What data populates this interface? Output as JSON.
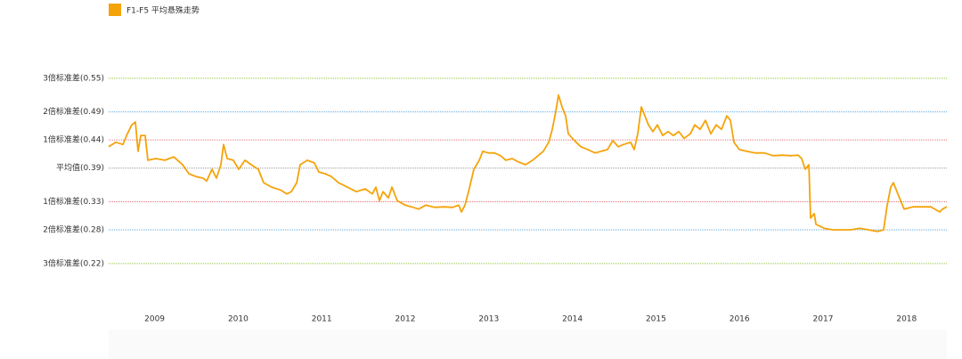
{
  "chart_data": {
    "type": "line",
    "x": [
      2008.45,
      2008.535,
      2008.621,
      2008.674,
      2008.727,
      2008.77,
      2008.802,
      2008.834,
      2008.887,
      2008.919,
      2009.015,
      2009.122,
      2009.228,
      2009.335,
      2009.41,
      2009.495,
      2009.58,
      2009.623,
      2009.687,
      2009.74,
      2009.793,
      2009.825,
      2009.868,
      2009.943,
      2010.007,
      2010.081,
      2010.156,
      2010.241,
      2010.305,
      2010.401,
      2010.508,
      2010.582,
      2010.636,
      2010.7,
      2010.742,
      2010.827,
      2010.913,
      2010.966,
      2011.041,
      2011.115,
      2011.201,
      2011.307,
      2011.414,
      2011.52,
      2011.606,
      2011.648,
      2011.691,
      2011.734,
      2011.798,
      2011.84,
      2011.904,
      2012.0,
      2012.075,
      2012.16,
      2012.245,
      2012.352,
      2012.459,
      2012.565,
      2012.64,
      2012.672,
      2012.714,
      2012.757,
      2012.821,
      2012.885,
      2012.928,
      2012.992,
      2013.066,
      2013.141,
      2013.205,
      2013.279,
      2013.354,
      2013.439,
      2013.525,
      2013.589,
      2013.653,
      2013.717,
      2013.759,
      2013.802,
      2013.834,
      2013.876,
      2013.919,
      2013.951,
      2014.026,
      2014.1,
      2014.186,
      2014.271,
      2014.346,
      2014.42,
      2014.484,
      2014.548,
      2014.612,
      2014.697,
      2014.74,
      2014.783,
      2014.825,
      2014.868,
      2014.911,
      2014.964,
      2015.017,
      2015.081,
      2015.145,
      2015.209,
      2015.273,
      2015.337,
      2015.412,
      2015.465,
      2015.529,
      2015.593,
      2015.657,
      2015.721,
      2015.785,
      2015.849,
      2015.891,
      2015.934,
      2015.998,
      2016.083,
      2016.19,
      2016.297,
      2016.403,
      2016.51,
      2016.616,
      2016.702,
      2016.744,
      2016.787,
      2016.83,
      2016.851,
      2016.894,
      2016.915,
      2017.011,
      2017.117,
      2017.224,
      2017.331,
      2017.437,
      2017.544,
      2017.65,
      2017.725,
      2017.768,
      2017.81,
      2017.842,
      2017.896,
      2017.97,
      2018.077,
      2018.183,
      2018.29,
      2018.397,
      2018.429,
      2018.482
    ],
    "series": [
      {
        "name": "F1-F5 平均悬殊走势",
        "color": "#f5a30a",
        "values": [
          0.428,
          0.436,
          0.432,
          0.451,
          0.467,
          0.472,
          0.42,
          0.448,
          0.448,
          0.404,
          0.407,
          0.404,
          0.41,
          0.396,
          0.38,
          0.375,
          0.372,
          0.367,
          0.388,
          0.372,
          0.396,
          0.432,
          0.407,
          0.404,
          0.388,
          0.404,
          0.396,
          0.388,
          0.364,
          0.356,
          0.351,
          0.344,
          0.348,
          0.364,
          0.396,
          0.404,
          0.399,
          0.383,
          0.38,
          0.375,
          0.364,
          0.356,
          0.348,
          0.353,
          0.344,
          0.356,
          0.332,
          0.348,
          0.337,
          0.356,
          0.332,
          0.324,
          0.321,
          0.317,
          0.324,
          0.32,
          0.321,
          0.32,
          0.324,
          0.312,
          0.324,
          0.348,
          0.388,
          0.404,
          0.42,
          0.417,
          0.417,
          0.412,
          0.404,
          0.407,
          0.401,
          0.396,
          0.404,
          0.412,
          0.42,
          0.436,
          0.459,
          0.491,
          0.52,
          0.499,
          0.483,
          0.451,
          0.439,
          0.428,
          0.423,
          0.417,
          0.42,
          0.423,
          0.439,
          0.428,
          0.432,
          0.436,
          0.423,
          0.451,
          0.499,
          0.483,
          0.467,
          0.455,
          0.467,
          0.448,
          0.455,
          0.448,
          0.455,
          0.443,
          0.451,
          0.467,
          0.459,
          0.475,
          0.451,
          0.467,
          0.459,
          0.483,
          0.475,
          0.436,
          0.423,
          0.42,
          0.417,
          0.417,
          0.412,
          0.413,
          0.412,
          0.413,
          0.407,
          0.388,
          0.396,
          0.301,
          0.309,
          0.29,
          0.283,
          0.28,
          0.28,
          0.28,
          0.283,
          0.28,
          0.277,
          0.28,
          0.324,
          0.356,
          0.364,
          0.344,
          0.317,
          0.321,
          0.321,
          0.321,
          0.312,
          0.317,
          0.321
        ]
      }
    ],
    "xlim": [
      2008.45,
      2018.5
    ],
    "xticks": [
      2009,
      2010,
      2011,
      2012,
      2013,
      2014,
      2015,
      2016,
      2017,
      2018
    ],
    "ylim": [
      0.15,
      0.61
    ],
    "yticks": [
      {
        "value": 0.55,
        "label": "3倍标准差(0.55)"
      },
      {
        "value": 0.49,
        "label": "2倍标准差(0.49)"
      },
      {
        "value": 0.44,
        "label": "1倍标准差(0.44)"
      },
      {
        "value": 0.39,
        "label": "平均值(0.39)"
      },
      {
        "value": 0.33,
        "label": "1倍标准差(0.33)"
      },
      {
        "value": 0.28,
        "label": "2倍标准差(0.28)"
      },
      {
        "value": 0.22,
        "label": "3倍标准差(0.22)"
      }
    ],
    "ytick_colors": [
      "#8cc63f",
      "#5aa9e6",
      "#e57373",
      "#999999",
      "#e57373",
      "#5aa9e6",
      "#8cc63f"
    ],
    "grid": true,
    "legend": "top-left"
  }
}
